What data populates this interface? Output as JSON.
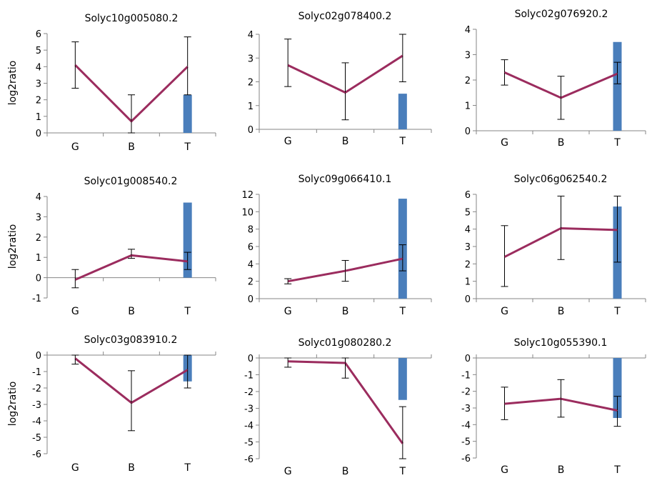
{
  "colors": {
    "line": "#9b2c5e",
    "bar": "#4a7ebb",
    "axis": "#868686",
    "error": "#000000"
  },
  "chart_data": [
    {
      "type": "line",
      "title": "Solyc10g005080.2",
      "ylabel": "log2ratio",
      "categories": [
        "G",
        "B",
        "T"
      ],
      "ylim": [
        0,
        6
      ],
      "yticks": [
        0,
        1,
        2,
        3,
        4,
        5,
        6
      ],
      "series": [
        {
          "values": [
            4.1,
            0.7,
            4.0
          ],
          "err_low": [
            2.7,
            0.0,
            2.3
          ],
          "err_high": [
            5.5,
            2.3,
            5.8
          ]
        }
      ],
      "bar": {
        "category": "T",
        "value": 2.3
      }
    },
    {
      "type": "line",
      "title": "Solyc02g078400.2",
      "ylabel": "",
      "categories": [
        "G",
        "B",
        "T"
      ],
      "ylim": [
        0,
        4
      ],
      "yticks": [
        0,
        1,
        2,
        3,
        4
      ],
      "series": [
        {
          "values": [
            2.7,
            1.55,
            3.1
          ],
          "err_low": [
            1.8,
            0.4,
            2.0
          ],
          "err_high": [
            3.8,
            2.8,
            4.0
          ]
        }
      ],
      "bar": {
        "category": "T",
        "value": 1.5
      }
    },
    {
      "type": "line",
      "title": "Solyc02g076920.2",
      "ylabel": "",
      "categories": [
        "G",
        "B",
        "T"
      ],
      "ylim": [
        0,
        4
      ],
      "yticks": [
        0,
        1,
        2,
        3,
        4
      ],
      "series": [
        {
          "values": [
            2.3,
            1.3,
            2.25
          ],
          "err_low": [
            1.8,
            0.45,
            1.85
          ],
          "err_high": [
            2.8,
            2.15,
            2.7
          ]
        }
      ],
      "bar": {
        "category": "T",
        "value": 3.5
      }
    },
    {
      "type": "line",
      "title": "Solyc01g008540.2",
      "ylabel": "log2ratio",
      "categories": [
        "G",
        "B",
        "T"
      ],
      "ylim": [
        -1,
        4
      ],
      "yticks": [
        -1,
        0,
        1,
        2,
        3,
        4
      ],
      "series": [
        {
          "values": [
            -0.1,
            1.1,
            0.8
          ],
          "err_low": [
            -0.5,
            0.95,
            0.4
          ],
          "err_high": [
            0.4,
            1.4,
            1.25
          ]
        }
      ],
      "bar": {
        "category": "T",
        "value": 3.7
      }
    },
    {
      "type": "line",
      "title": "Solyc09g066410.1",
      "ylabel": "",
      "categories": [
        "G",
        "B",
        "T"
      ],
      "ylim": [
        0,
        12
      ],
      "yticks": [
        0,
        2,
        4,
        6,
        8,
        10,
        12
      ],
      "series": [
        {
          "values": [
            2.0,
            3.2,
            4.6
          ],
          "err_low": [
            1.7,
            2.0,
            3.2
          ],
          "err_high": [
            2.3,
            4.4,
            6.2
          ]
        }
      ],
      "bar": {
        "category": "T",
        "value": 11.5
      }
    },
    {
      "type": "line",
      "title": "Solyc06g062540.2",
      "ylabel": "",
      "categories": [
        "G",
        "B",
        "T"
      ],
      "ylim": [
        0,
        6
      ],
      "yticks": [
        0,
        1,
        2,
        3,
        4,
        5,
        6
      ],
      "series": [
        {
          "values": [
            2.4,
            4.05,
            3.95
          ],
          "err_low": [
            0.7,
            2.25,
            2.1
          ],
          "err_high": [
            4.2,
            5.9,
            5.9
          ]
        }
      ],
      "bar": {
        "category": "T",
        "value": 5.3
      }
    },
    {
      "type": "line",
      "title": "Solyc03g083910.2",
      "ylabel": "log2ratio",
      "categories": [
        "G",
        "B",
        "T"
      ],
      "ylim": [
        -6,
        0
      ],
      "yticks": [
        0,
        -1,
        -2,
        -3,
        -4,
        -5,
        -6
      ],
      "series": [
        {
          "values": [
            -0.2,
            -2.9,
            -0.9
          ],
          "err_low": [
            -0.55,
            -4.6,
            -2.0
          ],
          "err_high": [
            0.0,
            -0.95,
            0.0
          ]
        }
      ],
      "bar": {
        "category": "T",
        "value": -1.6
      }
    },
    {
      "type": "line",
      "title": "Solyc01g080280.2",
      "ylabel": "",
      "categories": [
        "G",
        "B",
        "T"
      ],
      "ylim": [
        -6,
        0
      ],
      "yticks": [
        0,
        -1,
        -2,
        -3,
        -4,
        -5,
        -6
      ],
      "series": [
        {
          "values": [
            -0.2,
            -0.3,
            -5.1
          ],
          "err_low": [
            -0.55,
            -1.2,
            -6.0
          ],
          "err_high": [
            0.0,
            0.0,
            -2.9
          ]
        }
      ],
      "bar": {
        "category": "T",
        "value": -2.5
      }
    },
    {
      "type": "line",
      "title": "Solyc10g055390.1",
      "ylabel": "",
      "categories": [
        "G",
        "B",
        "T"
      ],
      "ylim": [
        -6,
        0
      ],
      "yticks": [
        0,
        -1,
        -2,
        -3,
        -4,
        -5,
        -6
      ],
      "series": [
        {
          "values": [
            -2.75,
            -2.45,
            -3.15
          ],
          "err_low": [
            -3.7,
            -3.55,
            -4.1
          ],
          "err_high": [
            -1.75,
            -1.3,
            -2.3
          ]
        }
      ],
      "bar": {
        "category": "T",
        "value": -3.6
      }
    }
  ]
}
